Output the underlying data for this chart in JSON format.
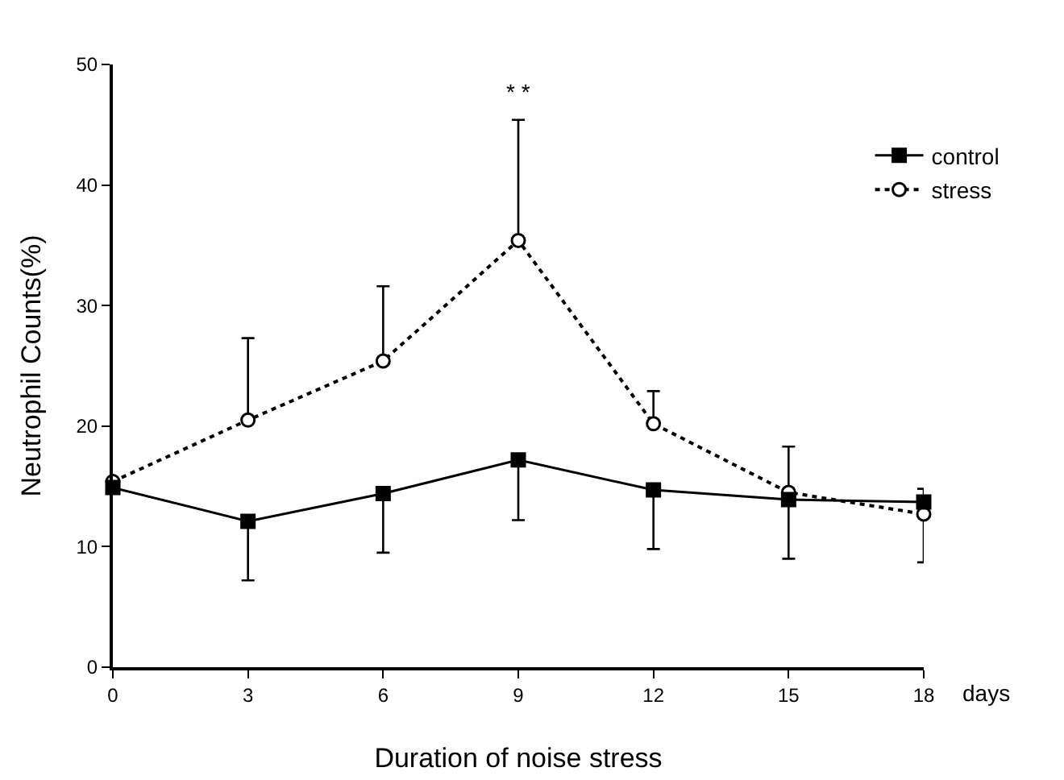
{
  "chart_data": {
    "type": "line",
    "xlabel": "Duration of noise stress",
    "ylabel": "Neutrophil Counts(%)",
    "x": [
      0,
      3,
      6,
      9,
      12,
      15,
      18
    ],
    "series": [
      {
        "name": "control",
        "color": "#000000",
        "marker": "square",
        "line_style": "solid",
        "values": [
          14.9,
          12.1,
          14.4,
          17.2,
          14.7,
          13.9,
          13.7
        ],
        "errors": [
          null,
          [
            7.2,
            12.1
          ],
          [
            9.5,
            14.4
          ],
          [
            12.2,
            17.2
          ],
          [
            9.8,
            14.7
          ],
          [
            9.0,
            13.9
          ],
          [
            13.7,
            14.8
          ]
        ]
      },
      {
        "name": "stress",
        "color": "#000000",
        "marker": "circle",
        "line_style": "dotted",
        "values": [
          15.4,
          20.5,
          25.4,
          35.4,
          20.2,
          14.5,
          12.7
        ],
        "errors": [
          null,
          [
            20.5,
            27.3
          ],
          [
            25.4,
            31.6
          ],
          [
            35.4,
            45.4
          ],
          [
            20.2,
            22.9
          ],
          [
            14.5,
            18.3
          ],
          [
            8.7,
            12.7
          ]
        ]
      }
    ],
    "xlim": [
      0,
      18
    ],
    "xticks": [
      0,
      3,
      6,
      9,
      12,
      15,
      18
    ],
    "ylim": [
      0,
      50
    ],
    "yticks": [
      0,
      10,
      20,
      30,
      40,
      50
    ],
    "grid": false,
    "legend": "right",
    "annotations": [
      "* *",
      "days"
    ]
  }
}
